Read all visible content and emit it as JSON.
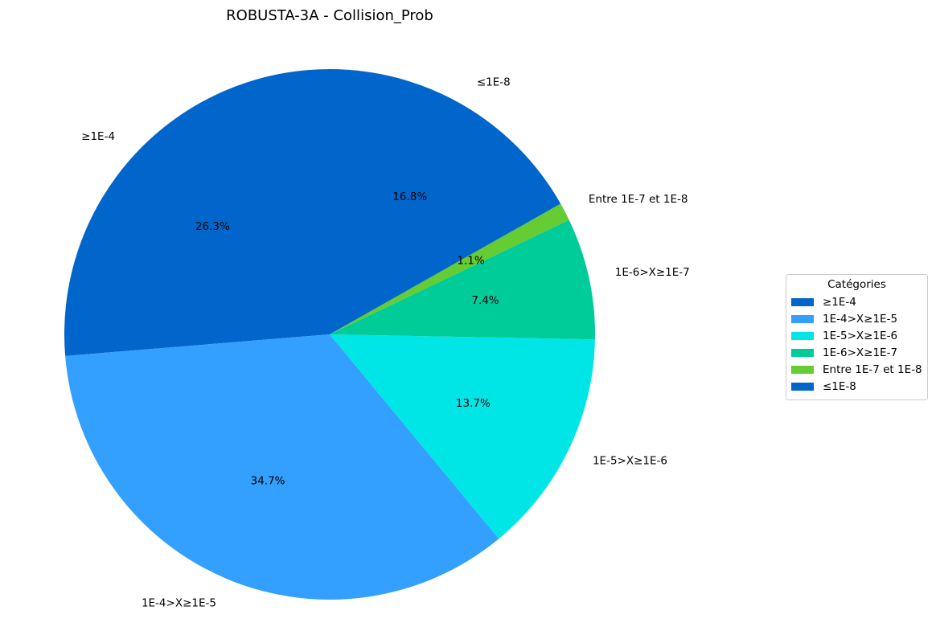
{
  "chart_data": {
    "type": "pie",
    "title": "ROBUSTA-3A - Collision_Prob",
    "categories": [
      "≥1E-4",
      "1E-4>X≥1E-5",
      "1E-5>X≥1E-6",
      "1E-6>X≥1E-7",
      "Entre 1E-7 et 1E-8",
      "≤1E-8"
    ],
    "values": [
      26.3,
      34.7,
      13.7,
      7.4,
      1.1,
      16.8
    ],
    "percent_labels": [
      "26.3%",
      "34.7%",
      "13.7%",
      "7.4%",
      "1.1%",
      "16.8%"
    ],
    "colors": [
      "#0066cc",
      "#339ffe",
      "#00e6e6",
      "#00cc99",
      "#66cc33",
      "#0066cc"
    ],
    "start_angle": "90° (top), counter-clockwise",
    "legend": {
      "title": "Catégories",
      "placement": "right",
      "entries": [
        "≥1E-4",
        "1E-4>X≥1E-5",
        "1E-5>X≥1E-6",
        "1E-6>X≥1E-7",
        "Entre 1E-7 et 1E-8",
        "≤1E-8"
      ]
    }
  }
}
